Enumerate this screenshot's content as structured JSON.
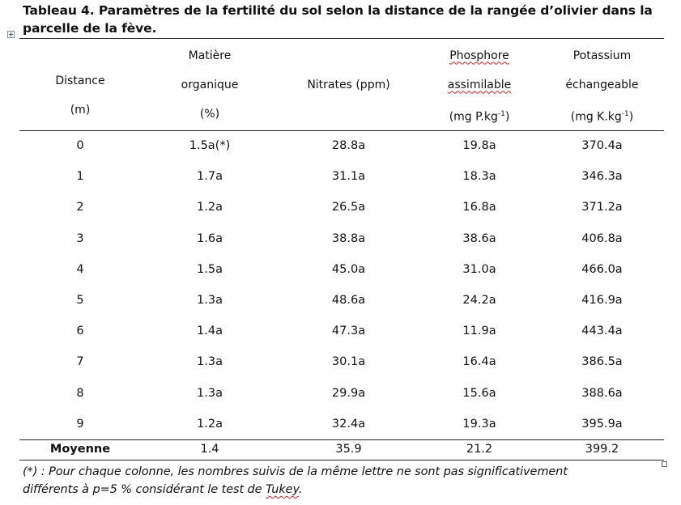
{
  "caption": {
    "line1": "Tableau 4. Paramètres de la fertilité du sol selon la distance de la rangée d’olivier dans la",
    "line2": "parcelle de la fève."
  },
  "table": {
    "headers": [
      {
        "line1": "Distance",
        "line2": "(m)",
        "line3": ""
      },
      {
        "line1": "Matière",
        "line2": "organique",
        "line3": "(%)"
      },
      {
        "line1": "",
        "line2": "Nitrates  (ppm)",
        "line3": ""
      },
      {
        "line1": "Phosphore",
        "line2": "assimilable",
        "line3": "(mg P.kg",
        "line3_sup": "-1",
        "line3_end": ")"
      },
      {
        "line1": "Potassium",
        "line2": "échangeable",
        "line3": "(mg K.kg",
        "line3_sup": "-1",
        "line3_end": ")"
      }
    ],
    "rows": [
      [
        "0",
        "1.5a(*)",
        "28.8a",
        "19.8a",
        "370.4a"
      ],
      [
        "1",
        "1.7a",
        "31.1a",
        "18.3a",
        "346.3a"
      ],
      [
        "2",
        "1.2a",
        "26.5a",
        "16.8a",
        "371.2a"
      ],
      [
        "3",
        "1.6a",
        "38.8a",
        "38.6a",
        "406.8a"
      ],
      [
        "4",
        "1.5a",
        "45.0a",
        "31.0a",
        "466.0a"
      ],
      [
        "5",
        "1.3a",
        "48.6a",
        "24.2a",
        "416.9a"
      ],
      [
        "6",
        "1.4a",
        "47.3a",
        "11.9a",
        "443.4a"
      ],
      [
        "7",
        "1.3a",
        "30.1a",
        "16.4a",
        "386.5a"
      ],
      [
        "8",
        "1.3a",
        "29.9a",
        "15.6a",
        "388.6a"
      ],
      [
        "9",
        "1.2a",
        "32.4a",
        "19.3a",
        "395.9a"
      ]
    ],
    "mean": [
      "Moyenne",
      "1.4",
      "35.9",
      "21.2",
      "399.2"
    ]
  },
  "footnote": {
    "line1": "(*) : Pour chaque colonne, les nombres suivis de la même lettre ne sont pas significativement",
    "line2_a": "différents à p=5 % considérant  le test de ",
    "line2_b": "Tukey",
    "line2_c": "."
  },
  "icons": {
    "table_move_handle": "move-handle-icon",
    "table_resize_handle": "resize-handle-icon"
  }
}
